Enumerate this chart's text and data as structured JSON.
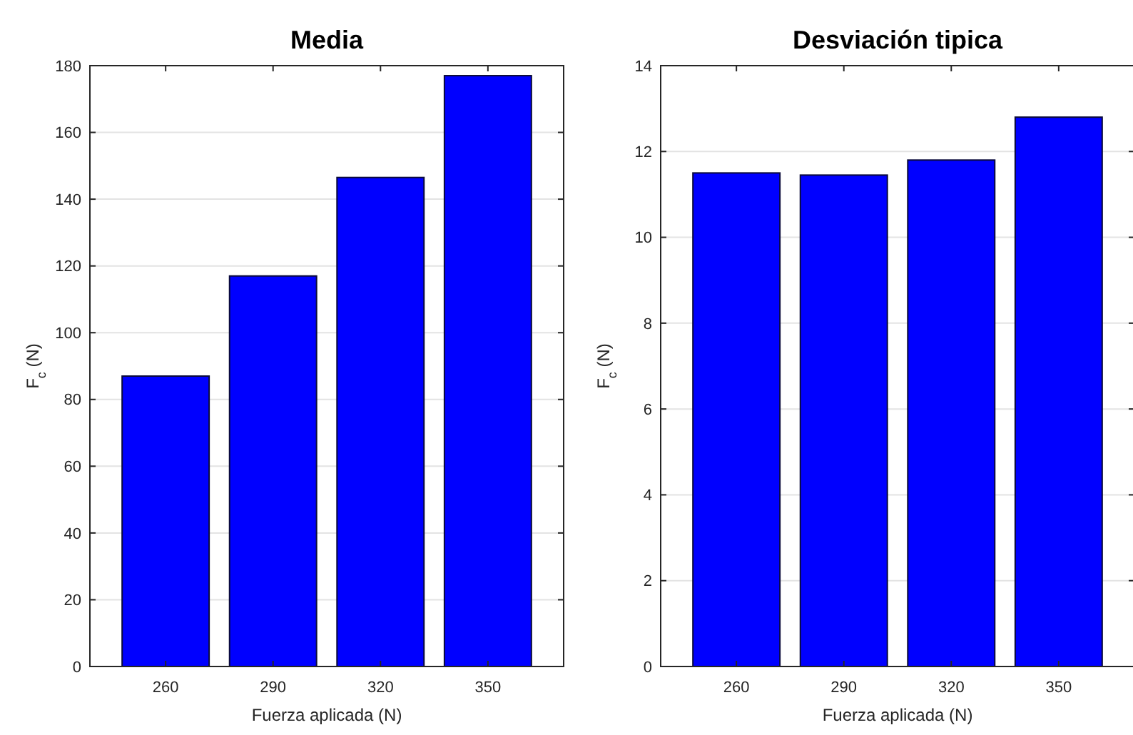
{
  "chart_data": [
    {
      "type": "bar",
      "title": "Media",
      "xlabel": "Fuerza aplicada (N)",
      "ylabel": "F$_{c}$ (N)",
      "categories": [
        "260",
        "290",
        "320",
        "350"
      ],
      "values": [
        87,
        117,
        146.5,
        177
      ],
      "color": "#0000ff",
      "ylim": [
        0,
        180
      ],
      "yticks": [
        0,
        20,
        40,
        60,
        80,
        100,
        120,
        140,
        160,
        180
      ],
      "grid": "y"
    },
    {
      "type": "bar",
      "title": "Desviación tipica",
      "xlabel": "Fuerza aplicada (N)",
      "ylabel": "F$_{c}$ (N)",
      "categories": [
        "260",
        "290",
        "320",
        "350"
      ],
      "values": [
        11.5,
        11.45,
        11.8,
        12.8
      ],
      "color": "#0000ff",
      "ylim": [
        0,
        14
      ],
      "yticks": [
        0,
        2,
        4,
        6,
        8,
        10,
        12,
        14
      ],
      "grid": "y"
    }
  ]
}
